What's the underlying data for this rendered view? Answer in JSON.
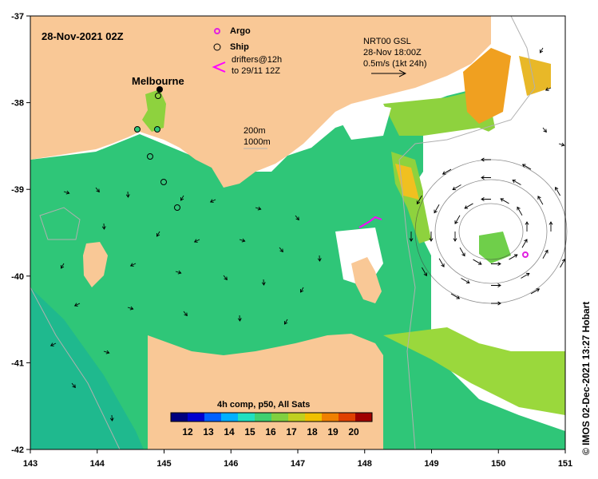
{
  "title": "28-Nov-2021 02Z",
  "place_label": "Melbourne",
  "legend": {
    "argo": "Argo",
    "ship": "Ship",
    "drifters_line1": "drifters@12h",
    "drifters_line2": "to 29/11 12Z",
    "argo_color": "#e020e0",
    "drifter_color": "#ff00ff"
  },
  "current_info": {
    "line1": "NRT00 GSL",
    "line2": "28-Nov 18:00Z",
    "line3": "0.5m/s (1kt 24h)"
  },
  "isobaths": {
    "line1": "200m",
    "line2": "1000m"
  },
  "colorbar": {
    "title": "4h comp, p50, All Sats",
    "ticks": [
      "12",
      "13",
      "14",
      "15",
      "16",
      "17",
      "18",
      "19",
      "20"
    ],
    "colors": [
      "#00007f",
      "#0000d0",
      "#0060ff",
      "#00b0ff",
      "#20e0c0",
      "#40d070",
      "#80d040",
      "#c0d020",
      "#f0c000",
      "#f08000",
      "#e04000",
      "#a00000"
    ]
  },
  "x_axis": {
    "ticks": [
      "143",
      "144",
      "145",
      "146",
      "147",
      "148",
      "149",
      "150",
      "151"
    ]
  },
  "y_axis": {
    "ticks": [
      "-37",
      "-38",
      "-39",
      "-40",
      "-41",
      "-42"
    ]
  },
  "credit": "© IMOS 02-Dec-2021 13:27 Hobart",
  "colors": {
    "land": "#f9c896",
    "sst_main": "#2fc678",
    "sst_warm": "#8ed23e",
    "sst_hot": "#f0a020",
    "cloud": "#ffffff"
  }
}
